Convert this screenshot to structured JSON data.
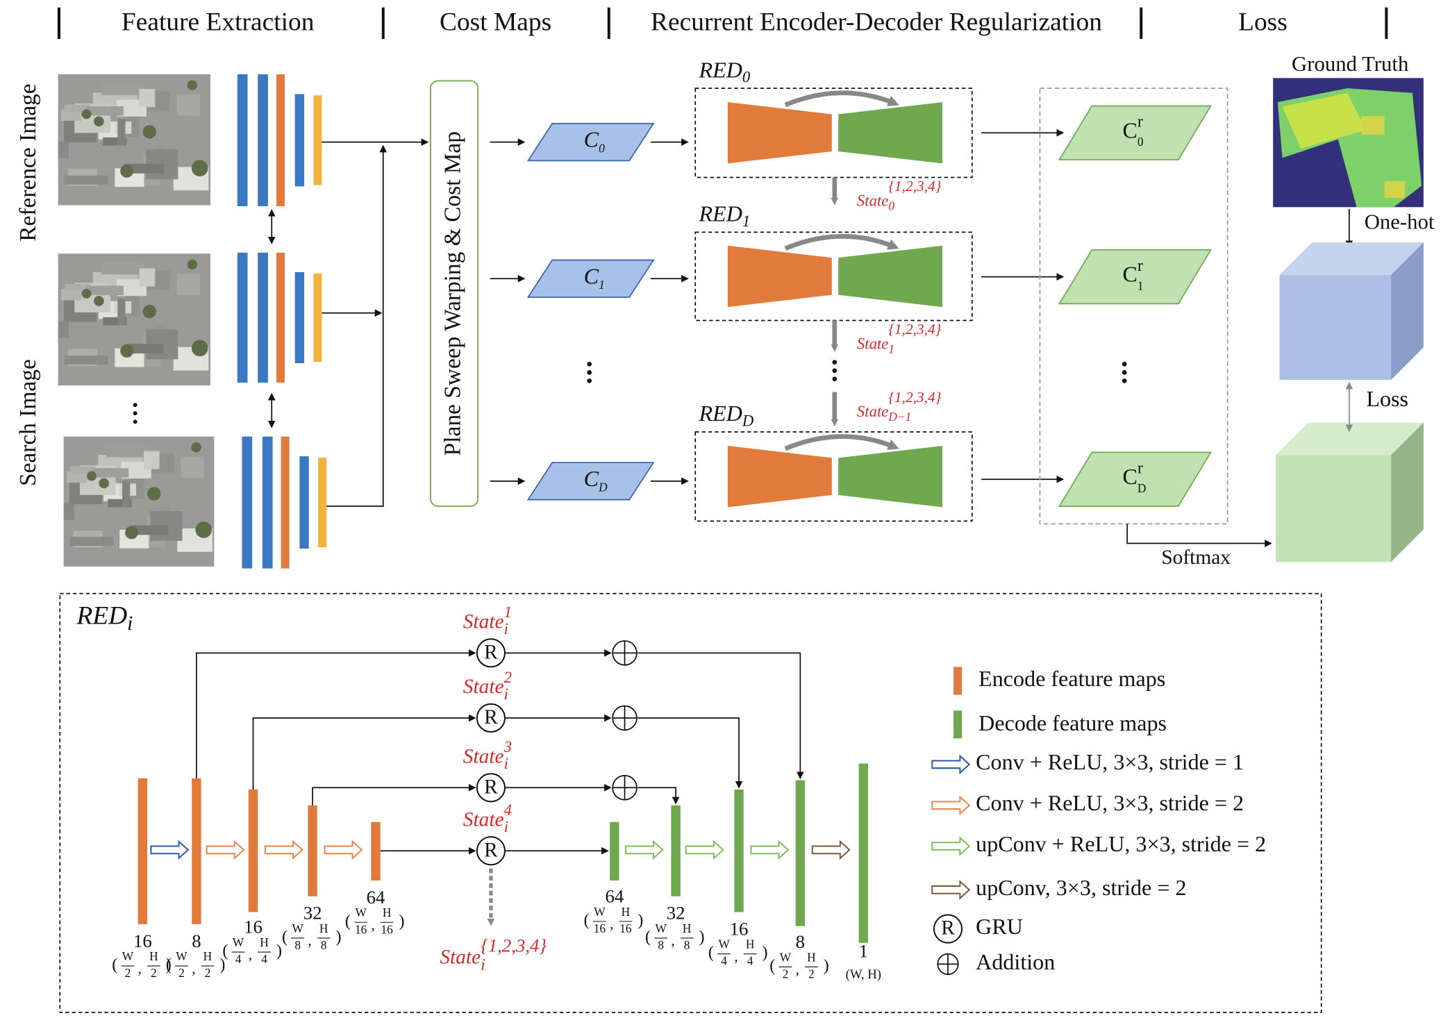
{
  "header": {
    "sections": [
      "Feature Extraction",
      "Cost Maps",
      "Recurrent Encoder-Decoder Regularization",
      "Loss"
    ]
  },
  "inputs": {
    "reference_label": "Reference Image",
    "search_label": "Search Image"
  },
  "warping": {
    "label": "Plane Sweep Warping & Cost Map"
  },
  "cost_maps": [
    {
      "main": "C",
      "sub": "0"
    },
    {
      "main": "C",
      "sub": "1"
    },
    {
      "main": "C",
      "sub": "D"
    }
  ],
  "red_blocks": [
    {
      "main": "RED",
      "sub": "0"
    },
    {
      "main": "RED",
      "sub": "1"
    },
    {
      "main": "RED",
      "sub": "D"
    }
  ],
  "states": [
    {
      "base": "State",
      "sub": "0",
      "sup": "{1,2,3,4}"
    },
    {
      "base": "State",
      "sub": "1",
      "sup": "{1,2,3,4}"
    },
    {
      "base": "State",
      "sub": "D−1",
      "sup": "{1,2,3,4}"
    }
  ],
  "regularized": [
    {
      "main": "C",
      "sup": "r",
      "sub": "0"
    },
    {
      "main": "C",
      "sup": "r",
      "sub": "1"
    },
    {
      "main": "C",
      "sup": "r",
      "sub": "D"
    }
  ],
  "loss": {
    "ground_truth": "Ground Truth",
    "one_hot": "One-hot",
    "loss": "Loss",
    "softmax": "Softmax"
  },
  "red_detail": {
    "title": {
      "main": "RED",
      "sub": "i"
    },
    "gru_symbol": "R",
    "gru_states": [
      {
        "base": "State",
        "sub": "i",
        "sup": "1"
      },
      {
        "base": "State",
        "sub": "i",
        "sup": "2"
      },
      {
        "base": "State",
        "sub": "i",
        "sup": "3"
      },
      {
        "base": "State",
        "sub": "i",
        "sup": "4"
      }
    ],
    "output_state": {
      "base": "State",
      "sub": "i",
      "sup": "{1,2,3,4}"
    },
    "size_format": {
      "open": "(",
      "sep": ",",
      "close": ")"
    },
    "encoder": [
      {
        "channels": 16,
        "size": {
          "w": "W",
          "wd": "2",
          "h": "H",
          "hd": "2"
        }
      },
      {
        "channels": 8,
        "size": {
          "w": "W",
          "wd": "2",
          "h": "H",
          "hd": "2"
        }
      },
      {
        "channels": 16,
        "size": {
          "w": "W",
          "wd": "4",
          "h": "H",
          "hd": "4"
        }
      },
      {
        "channels": 32,
        "size": {
          "w": "W",
          "wd": "8",
          "h": "H",
          "hd": "8"
        }
      },
      {
        "channels": 64,
        "size": {
          "w": "W",
          "wd": "16",
          "h": "H",
          "hd": "16"
        }
      }
    ],
    "decoder": [
      {
        "channels": 64,
        "size": {
          "w": "W",
          "wd": "16",
          "h": "H",
          "hd": "16"
        }
      },
      {
        "channels": 32,
        "size": {
          "w": "W",
          "wd": "8",
          "h": "H",
          "hd": "8"
        }
      },
      {
        "channels": 16,
        "size": {
          "w": "W",
          "wd": "4",
          "h": "H",
          "hd": "4"
        }
      },
      {
        "channels": 8,
        "size": {
          "w": "W",
          "wd": "2",
          "h": "H",
          "hd": "2"
        }
      },
      {
        "channels": 1,
        "size_text": "(W, H)"
      }
    ]
  },
  "legend": [
    {
      "label": "Encode feature maps"
    },
    {
      "label": "Decode feature maps"
    },
    {
      "label": "Conv + ReLU, 3×3, stride = 1"
    },
    {
      "label": "Conv + ReLU, 3×3, stride = 2"
    },
    {
      "label": "upConv + ReLU, 3×3, stride = 2"
    },
    {
      "label": "upConv, 3×3, stride = 2"
    },
    {
      "label": "GRU"
    },
    {
      "label": "Addition"
    }
  ]
}
